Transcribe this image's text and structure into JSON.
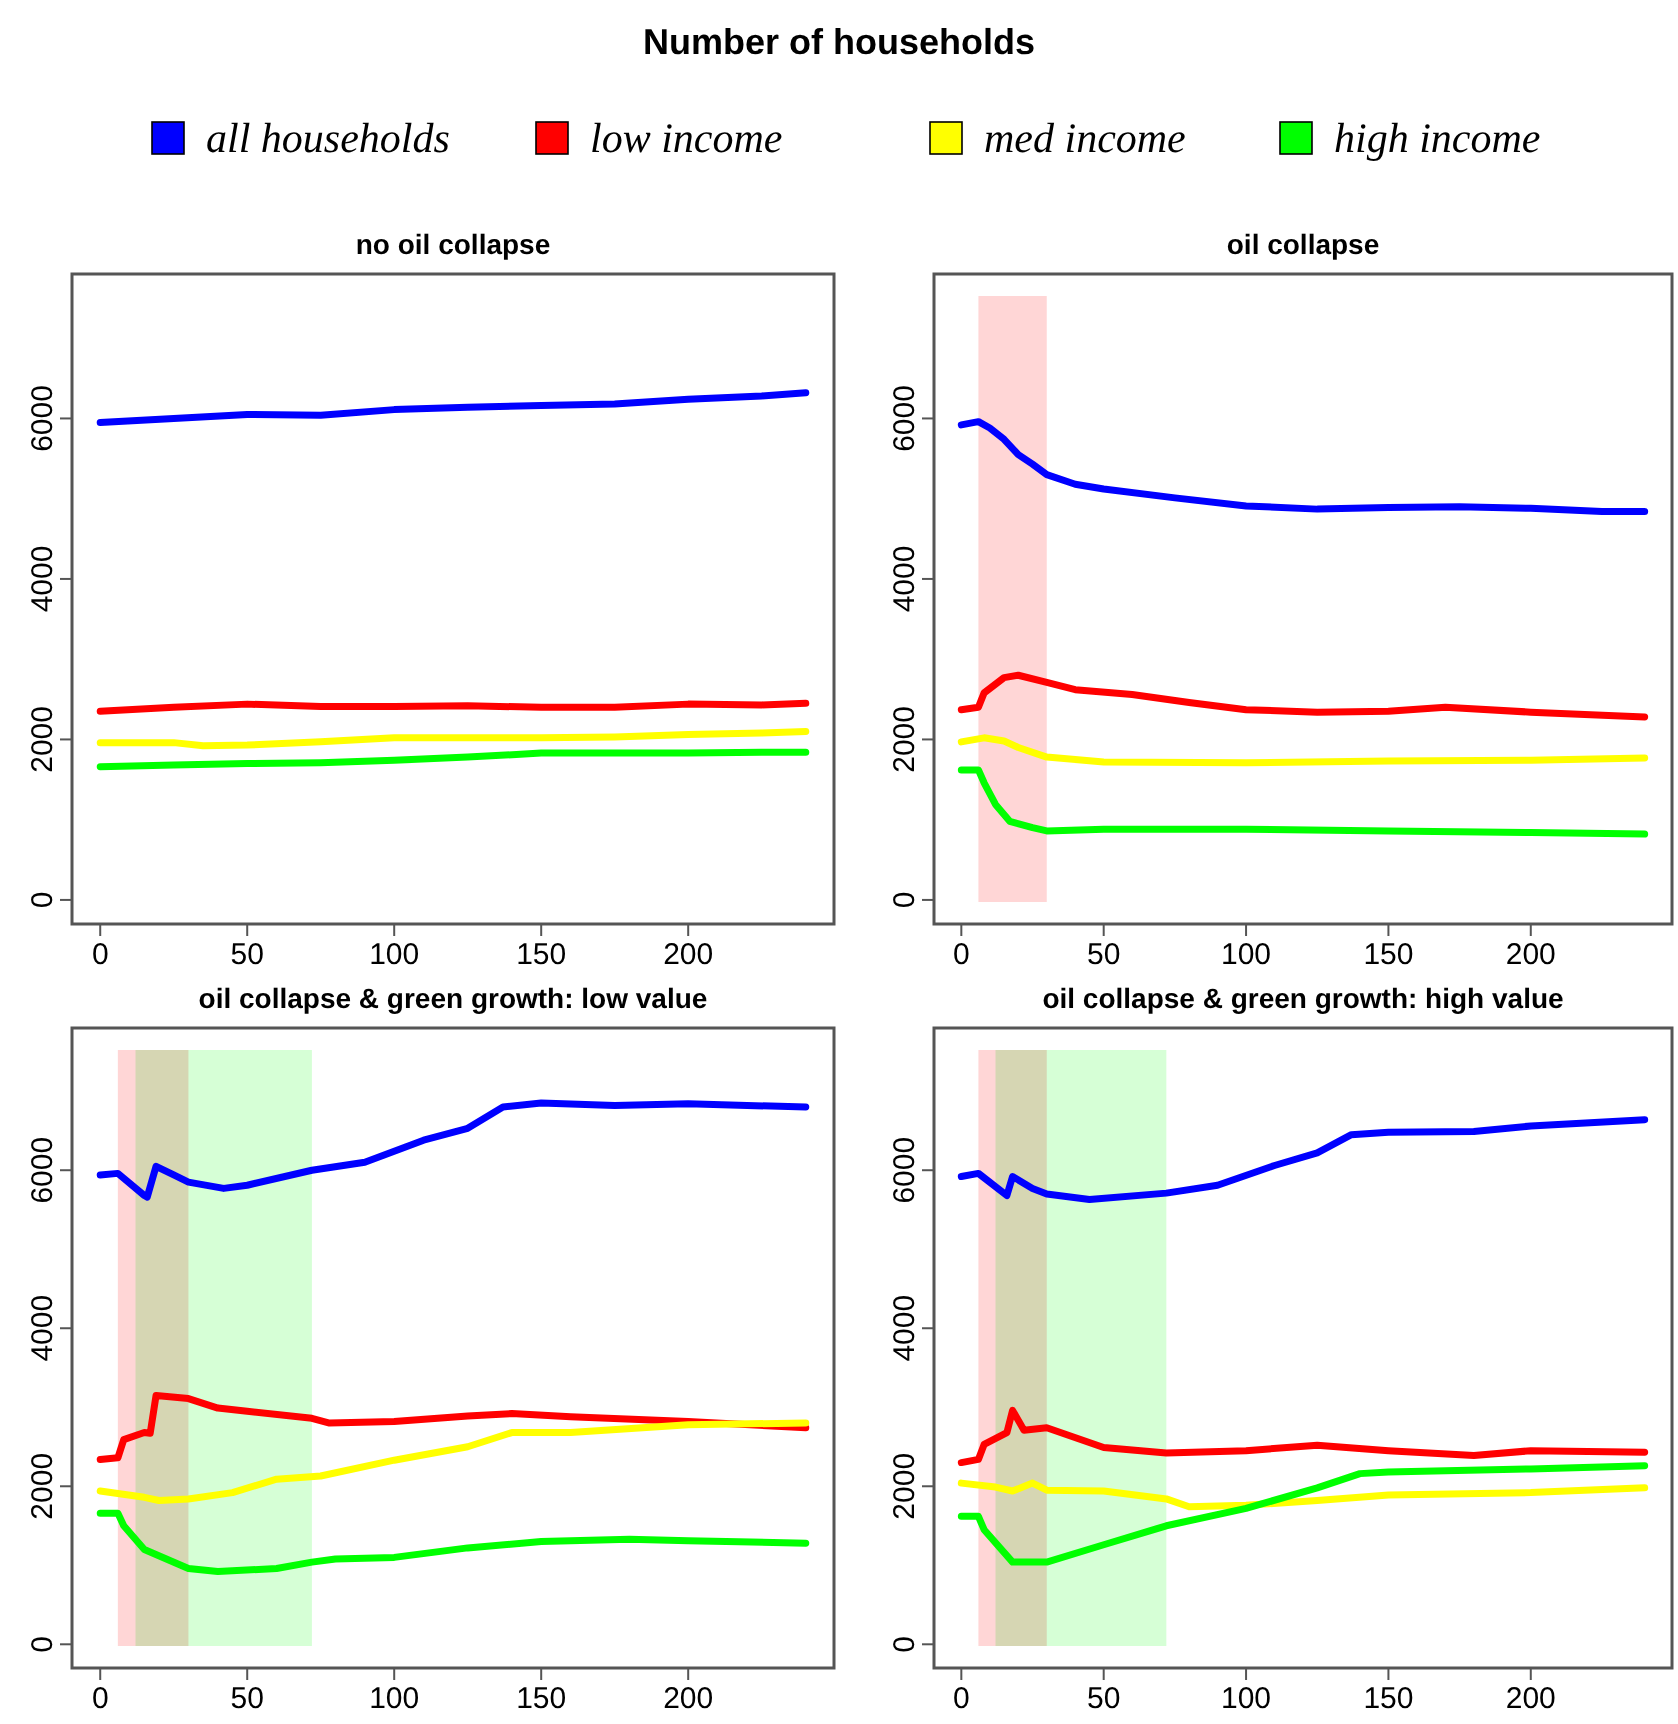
{
  "chart_data": [
    {
      "type": "other",
      "title": "Number of households"
    },
    {
      "type": "line",
      "title": "no oil collapse",
      "legend": "top",
      "xlim": [
        -9.6,
        249.6
      ],
      "ylim": [
        -300,
        7800
      ],
      "xticks": [
        0,
        50,
        100,
        150,
        200
      ],
      "yticks": [
        0,
        2000,
        4000,
        6000
      ],
      "grid": false,
      "series": [
        {
          "name": "all households",
          "color": "#0000ff",
          "x": [
            0,
            25,
            50,
            75,
            100,
            125,
            150,
            175,
            200,
            225,
            240
          ],
          "values": [
            5950,
            6000,
            6050,
            6040,
            6110,
            6140,
            6160,
            6180,
            6240,
            6280,
            6320
          ]
        },
        {
          "name": "low income",
          "color": "#ff0000",
          "x": [
            0,
            25,
            50,
            75,
            100,
            125,
            150,
            175,
            200,
            225,
            240
          ],
          "values": [
            2350,
            2400,
            2440,
            2410,
            2410,
            2420,
            2400,
            2400,
            2440,
            2430,
            2450
          ]
        },
        {
          "name": "med income",
          "color": "#ffff00",
          "x": [
            0,
            25,
            35,
            50,
            75,
            100,
            125,
            150,
            175,
            200,
            225,
            240
          ],
          "values": [
            1960,
            1960,
            1920,
            1930,
            1970,
            2020,
            2020,
            2020,
            2030,
            2060,
            2080,
            2100
          ]
        },
        {
          "name": "high income",
          "color": "#00ff00",
          "x": [
            0,
            25,
            50,
            75,
            100,
            125,
            150,
            175,
            200,
            225,
            240
          ],
          "values": [
            1660,
            1680,
            1700,
            1710,
            1740,
            1780,
            1830,
            1830,
            1830,
            1840,
            1840
          ]
        }
      ]
    },
    {
      "type": "line",
      "title": "oil collapse",
      "xlim": [
        -9.6,
        249.6
      ],
      "ylim": [
        -300,
        7800
      ],
      "xticks": [
        0,
        50,
        100,
        150,
        200
      ],
      "yticks": [
        0,
        2000,
        4000,
        6000
      ],
      "grid": false,
      "bands": [
        {
          "axis": "x",
          "from": 6,
          "to": 30,
          "color": "#ffcccc"
        }
      ],
      "series": [
        {
          "color": "#0000ff",
          "x": [
            0,
            6,
            10,
            15,
            20,
            25,
            30,
            40,
            50,
            75,
            100,
            125,
            150,
            175,
            200,
            225,
            240
          ],
          "values": [
            5920,
            5960,
            5880,
            5740,
            5550,
            5430,
            5300,
            5180,
            5120,
            5010,
            4910,
            4870,
            4890,
            4900,
            4880,
            4840,
            4840
          ]
        },
        {
          "color": "#ff0000",
          "x": [
            0,
            6,
            8,
            15,
            20,
            30,
            40,
            60,
            80,
            100,
            125,
            150,
            170,
            200,
            240
          ],
          "values": [
            2370,
            2400,
            2580,
            2770,
            2800,
            2710,
            2620,
            2560,
            2460,
            2370,
            2340,
            2350,
            2400,
            2340,
            2280
          ]
        },
        {
          "color": "#ffff00",
          "x": [
            0,
            8,
            15,
            20,
            30,
            50,
            100,
            150,
            200,
            240
          ],
          "values": [
            1970,
            2020,
            1980,
            1900,
            1780,
            1720,
            1710,
            1730,
            1740,
            1770
          ]
        },
        {
          "color": "#00ff00",
          "x": [
            0,
            6,
            8,
            12,
            17,
            25,
            30,
            50,
            100,
            150,
            200,
            240
          ],
          "values": [
            1620,
            1620,
            1460,
            1190,
            980,
            900,
            860,
            880,
            880,
            860,
            840,
            820
          ]
        }
      ]
    },
    {
      "type": "line",
      "title": "oil collapse & green growth: low value",
      "xlim": [
        -9.6,
        249.6
      ],
      "ylim": [
        -300,
        7800
      ],
      "xticks": [
        0,
        50,
        100,
        150,
        200
      ],
      "yticks": [
        0,
        2000,
        4000,
        6000
      ],
      "grid": false,
      "bands": [
        {
          "axis": "x",
          "from": 6,
          "to": 30,
          "color": "#ffcccc"
        },
        {
          "axis": "x",
          "from": 12,
          "to": 72,
          "color": "#ccffcc"
        }
      ],
      "series": [
        {
          "color": "#0000ff",
          "x": [
            0,
            6,
            15,
            16,
            19,
            25,
            30,
            42,
            50,
            72,
            90,
            110,
            125,
            137,
            150,
            175,
            200,
            240
          ],
          "values": [
            5940,
            5960,
            5680,
            5660,
            6050,
            5940,
            5850,
            5770,
            5810,
            6000,
            6100,
            6380,
            6530,
            6800,
            6850,
            6820,
            6840,
            6800
          ]
        },
        {
          "color": "#ff0000",
          "x": [
            0,
            6,
            8,
            15,
            17,
            19,
            30,
            40,
            50,
            72,
            78,
            100,
            125,
            140,
            160,
            200,
            240
          ],
          "values": [
            2340,
            2360,
            2590,
            2680,
            2670,
            3150,
            3110,
            2990,
            2950,
            2860,
            2800,
            2820,
            2890,
            2920,
            2880,
            2820,
            2740
          ]
        },
        {
          "color": "#ffff00",
          "x": [
            0,
            15,
            20,
            30,
            45,
            60,
            75,
            100,
            125,
            140,
            160,
            200,
            240
          ],
          "values": [
            1940,
            1860,
            1820,
            1840,
            1920,
            2090,
            2130,
            2330,
            2500,
            2680,
            2680,
            2780,
            2800
          ]
        },
        {
          "color": "#00ff00",
          "x": [
            0,
            6,
            8,
            15,
            30,
            40,
            60,
            72,
            80,
            100,
            125,
            150,
            180,
            200,
            240
          ],
          "values": [
            1660,
            1660,
            1500,
            1200,
            960,
            920,
            960,
            1040,
            1080,
            1100,
            1220,
            1300,
            1330,
            1310,
            1280
          ]
        }
      ]
    },
    {
      "type": "line",
      "title": "oil collapse & green growth: high value",
      "xlim": [
        -9.6,
        249.6
      ],
      "ylim": [
        -300,
        7800
      ],
      "xticks": [
        0,
        50,
        100,
        150,
        200
      ],
      "yticks": [
        0,
        2000,
        4000,
        6000
      ],
      "grid": false,
      "bands": [
        {
          "axis": "x",
          "from": 6,
          "to": 30,
          "color": "#ffcccc"
        },
        {
          "axis": "x",
          "from": 12,
          "to": 72,
          "color": "#ccffcc"
        }
      ],
      "series": [
        {
          "color": "#0000ff",
          "x": [
            0,
            6,
            16,
            18,
            25,
            30,
            45,
            72,
            90,
            110,
            125,
            137,
            150,
            180,
            200,
            240
          ],
          "values": [
            5920,
            5960,
            5680,
            5920,
            5770,
            5700,
            5630,
            5710,
            5810,
            6060,
            6220,
            6450,
            6480,
            6490,
            6560,
            6640
          ]
        },
        {
          "color": "#ff0000",
          "x": [
            0,
            6,
            8,
            16,
            18,
            22,
            30,
            50,
            72,
            100,
            125,
            150,
            180,
            200,
            240
          ],
          "values": [
            2300,
            2340,
            2530,
            2680,
            2960,
            2710,
            2740,
            2490,
            2420,
            2450,
            2520,
            2450,
            2390,
            2450,
            2430
          ]
        },
        {
          "color": "#ffff00",
          "x": [
            0,
            12,
            18,
            25,
            30,
            50,
            72,
            80,
            100,
            125,
            150,
            200,
            240
          ],
          "values": [
            2040,
            1990,
            1940,
            2040,
            1950,
            1940,
            1840,
            1740,
            1760,
            1820,
            1890,
            1920,
            1980
          ]
        },
        {
          "color": "#00ff00",
          "x": [
            0,
            6,
            8,
            18,
            30,
            50,
            72,
            100,
            125,
            140,
            150,
            200,
            240
          ],
          "values": [
            1620,
            1620,
            1450,
            1040,
            1040,
            1260,
            1500,
            1720,
            1980,
            2160,
            2180,
            2220,
            2260
          ]
        }
      ]
    }
  ]
}
